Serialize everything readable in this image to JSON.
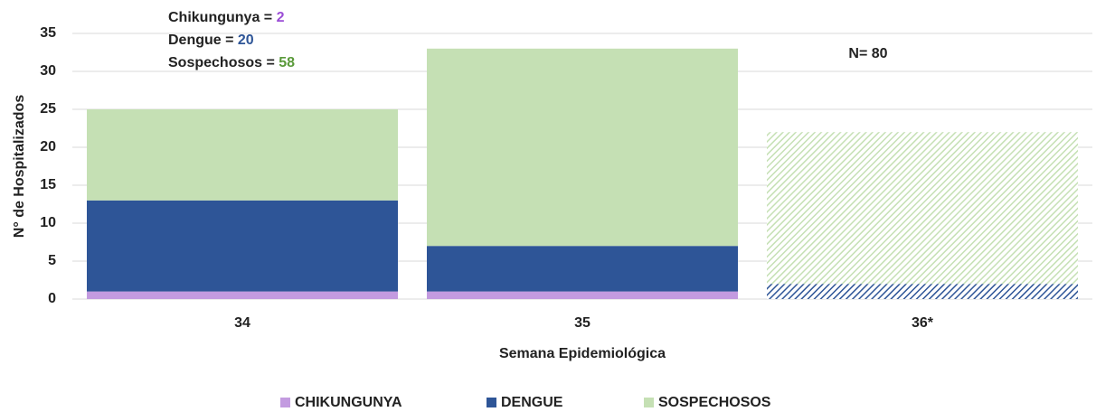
{
  "chart_data": {
    "type": "stacked_bar",
    "categories": [
      "34",
      "35",
      "36*"
    ],
    "series": [
      {
        "name": "CHIKUNGUNYA",
        "color": "#c39be0",
        "values": [
          1,
          1,
          0
        ]
      },
      {
        "name": "DENGUE",
        "color": "#2e5597",
        "values": [
          12,
          6,
          2
        ]
      },
      {
        "name": "SOSPECHOSOS",
        "color": "#c5e0b4",
        "values": [
          12,
          26,
          20
        ]
      }
    ],
    "hatched": [
      false,
      false,
      true
    ],
    "ylim": [
      0,
      35
    ],
    "yticks": [
      0,
      5,
      10,
      15,
      20,
      25,
      30,
      35
    ],
    "grid": true,
    "ylabel": "N° de Hospitalizados",
    "xlabel": "Semana Epidemiológica",
    "legend": "bottom",
    "annotations": [
      {
        "text": "Chikungunya = ",
        "value": 2,
        "color": "#9b4dd6"
      },
      {
        "text": "Dengue = ",
        "value": 20,
        "color": "#2e5597"
      },
      {
        "text": "Sospechosos = ",
        "value": 58,
        "color": "#5a9a3a"
      }
    ],
    "note": "N= 80"
  }
}
